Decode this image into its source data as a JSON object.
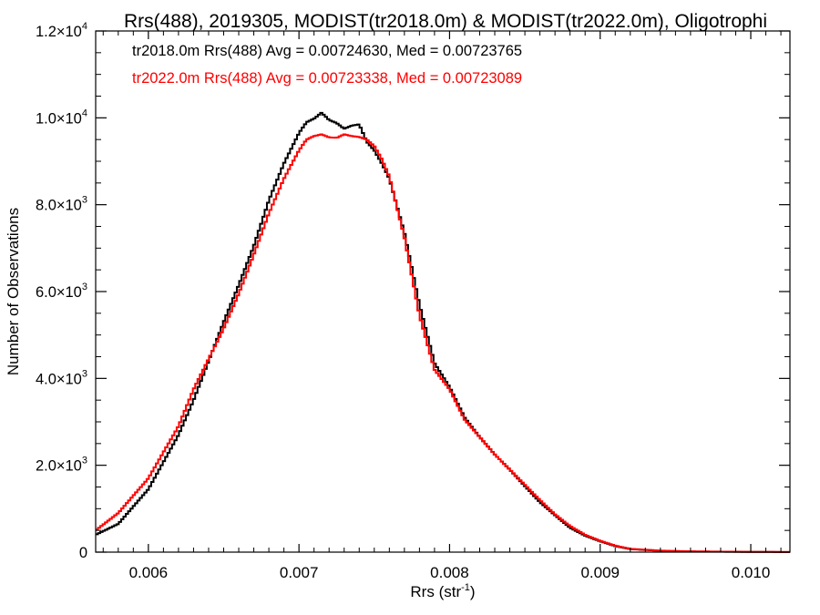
{
  "chart_data": {
    "type": "line",
    "title": "Rrs(488), 2019305, MODIST(tr2018.0m) & MODIST(tr2022.0m), Oligotrophi",
    "xlabel": "Rrs (str",
    "xlabel_sup": "-1",
    "xlabel_close": ")",
    "ylabel": "Number of Observations",
    "xlim": [
      0.00565,
      0.01026
    ],
    "ylim": [
      0,
      12000
    ],
    "x_ticks": [
      {
        "value": 0.006,
        "label": "0.006"
      },
      {
        "value": 0.007,
        "label": "0.007"
      },
      {
        "value": 0.008,
        "label": "0.008"
      },
      {
        "value": 0.009,
        "label": "0.009"
      },
      {
        "value": 0.01,
        "label": "0.010"
      }
    ],
    "y_ticks": [
      {
        "value": 0,
        "mant": "0",
        "exp": ""
      },
      {
        "value": 2000,
        "mant": "2.0×10",
        "exp": "3"
      },
      {
        "value": 4000,
        "mant": "4.0×10",
        "exp": "3"
      },
      {
        "value": 6000,
        "mant": "6.0×10",
        "exp": "3"
      },
      {
        "value": 8000,
        "mant": "8.0×10",
        "exp": "3"
      },
      {
        "value": 10000,
        "mant": "1.0×10",
        "exp": "4"
      },
      {
        "value": 12000,
        "mant": "1.2×10",
        "exp": "4"
      }
    ],
    "legend": [
      {
        "text": "tr2018.0m Rrs(488) Avg = 0.00724630, Med = 0.00723765",
        "color": "#000000"
      },
      {
        "text": "tr2022.0m Rrs(488) Avg = 0.00723338, Med = 0.00723089",
        "color": "#ff0000"
      }
    ],
    "series": [
      {
        "color": "#000000",
        "x": [
          0.00565,
          0.0058,
          0.006,
          0.0062,
          0.0063,
          0.0064,
          0.0065,
          0.0066,
          0.0067,
          0.0068,
          0.0069,
          0.007,
          0.00705,
          0.0071,
          0.00715,
          0.0072,
          0.00725,
          0.0073,
          0.00735,
          0.0074,
          0.00745,
          0.0075,
          0.00755,
          0.0076,
          0.0077,
          0.0078,
          0.0079,
          0.008,
          0.0081,
          0.0082,
          0.0083,
          0.0084,
          0.0085,
          0.0086,
          0.0087,
          0.0088,
          0.0089,
          0.009,
          0.0091,
          0.0092,
          0.0094,
          0.0096,
          0.01,
          0.01026
        ],
        "y": [
          400,
          650,
          1450,
          2700,
          3500,
          4400,
          5300,
          6150,
          7050,
          8100,
          8950,
          9650,
          9900,
          9980,
          10120,
          9950,
          9880,
          9750,
          9820,
          9850,
          9450,
          9250,
          8950,
          8600,
          7350,
          5700,
          4350,
          3800,
          3100,
          2650,
          2250,
          1900,
          1520,
          1150,
          850,
          560,
          380,
          250,
          140,
          70,
          30,
          15,
          5,
          3
        ]
      },
      {
        "color": "#ff0000",
        "x": [
          0.00565,
          0.0058,
          0.006,
          0.0062,
          0.0063,
          0.0064,
          0.0065,
          0.0066,
          0.0067,
          0.0068,
          0.0069,
          0.007,
          0.00705,
          0.0071,
          0.00715,
          0.0072,
          0.00725,
          0.0073,
          0.00735,
          0.0074,
          0.00745,
          0.0075,
          0.00755,
          0.0076,
          0.0077,
          0.0078,
          0.0079,
          0.008,
          0.0081,
          0.0082,
          0.0083,
          0.0084,
          0.0085,
          0.0086,
          0.0087,
          0.0088,
          0.0089,
          0.009,
          0.0091,
          0.0092,
          0.0094,
          0.0096,
          0.01,
          0.01026
        ],
        "y": [
          500,
          900,
          1700,
          2900,
          3750,
          4450,
          5150,
          5950,
          6850,
          7800,
          8600,
          9250,
          9500,
          9580,
          9620,
          9550,
          9540,
          9620,
          9580,
          9560,
          9500,
          9350,
          9050,
          8650,
          7250,
          5450,
          4200,
          3750,
          3050,
          2650,
          2250,
          1900,
          1550,
          1200,
          870,
          600,
          400,
          260,
          150,
          75,
          35,
          18,
          6,
          3
        ]
      }
    ]
  }
}
